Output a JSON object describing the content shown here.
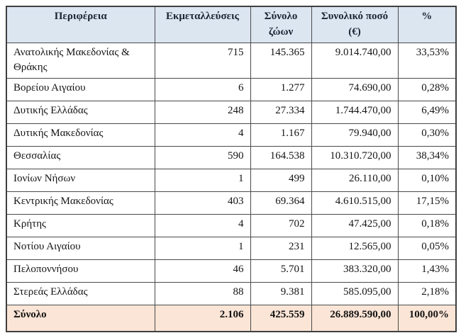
{
  "colors": {
    "header_bg": "#dce6f1",
    "total_bg": "#fbe5d6",
    "border": "#4a4a4a",
    "text": "#141414"
  },
  "table": {
    "columns": {
      "region": "Περιφέρεια",
      "farms": "Εκμεταλλεύσεις",
      "animals": "Σύνολο ζώων",
      "amount": "Συνολικό ποσό (€)",
      "percent": "%"
    },
    "rows": [
      {
        "region": "Ανατολικής Μακεδονίας & Θράκης",
        "farms": "715",
        "animals": "145.365",
        "amount": "9.014.740,00",
        "percent": "33,53%",
        "tall": true
      },
      {
        "region": "Βορείου Αιγαίου",
        "farms": "6",
        "animals": "1.277",
        "amount": "74.690,00",
        "percent": "0,28%",
        "tall": false
      },
      {
        "region": "Δυτικής Ελλάδας",
        "farms": "248",
        "animals": "27.334",
        "amount": "1.744.470,00",
        "percent": "6,49%",
        "tall": false
      },
      {
        "region": "Δυτικής Μακεδονίας",
        "farms": "4",
        "animals": "1.167",
        "amount": "79.940,00",
        "percent": "0,30%",
        "tall": false
      },
      {
        "region": "Θεσσαλίας",
        "farms": "590",
        "animals": "164.538",
        "amount": "10.310.720,00",
        "percent": "38,34%",
        "tall": false
      },
      {
        "region": "Ιονίων Νήσων",
        "farms": "1",
        "animals": "499",
        "amount": "26.110,00",
        "percent": "0,10%",
        "tall": false
      },
      {
        "region": "Κεντρικής Μακεδονίας",
        "farms": "403",
        "animals": "69.364",
        "amount": "4.610.515,00",
        "percent": "17,15%",
        "tall": false
      },
      {
        "region": "Κρήτης",
        "farms": "4",
        "animals": "702",
        "amount": "47.425,00",
        "percent": "0,18%",
        "tall": false
      },
      {
        "region": "Νοτίου Αιγαίου",
        "farms": "1",
        "animals": "231",
        "amount": "12.565,00",
        "percent": "0,05%",
        "tall": false
      },
      {
        "region": "Πελοποννήσου",
        "farms": "46",
        "animals": "5.701",
        "amount": "383.320,00",
        "percent": "1,43%",
        "tall": false
      },
      {
        "region": "Στερεάς Ελλάδας",
        "farms": "88",
        "animals": "9.381",
        "amount": "585.095,00",
        "percent": "2,18%",
        "tall": false
      }
    ],
    "total": {
      "region": "Σύνολο",
      "farms": "2.106",
      "animals": "425.559",
      "amount": "26.889.590,00",
      "percent": "100,00%"
    }
  }
}
